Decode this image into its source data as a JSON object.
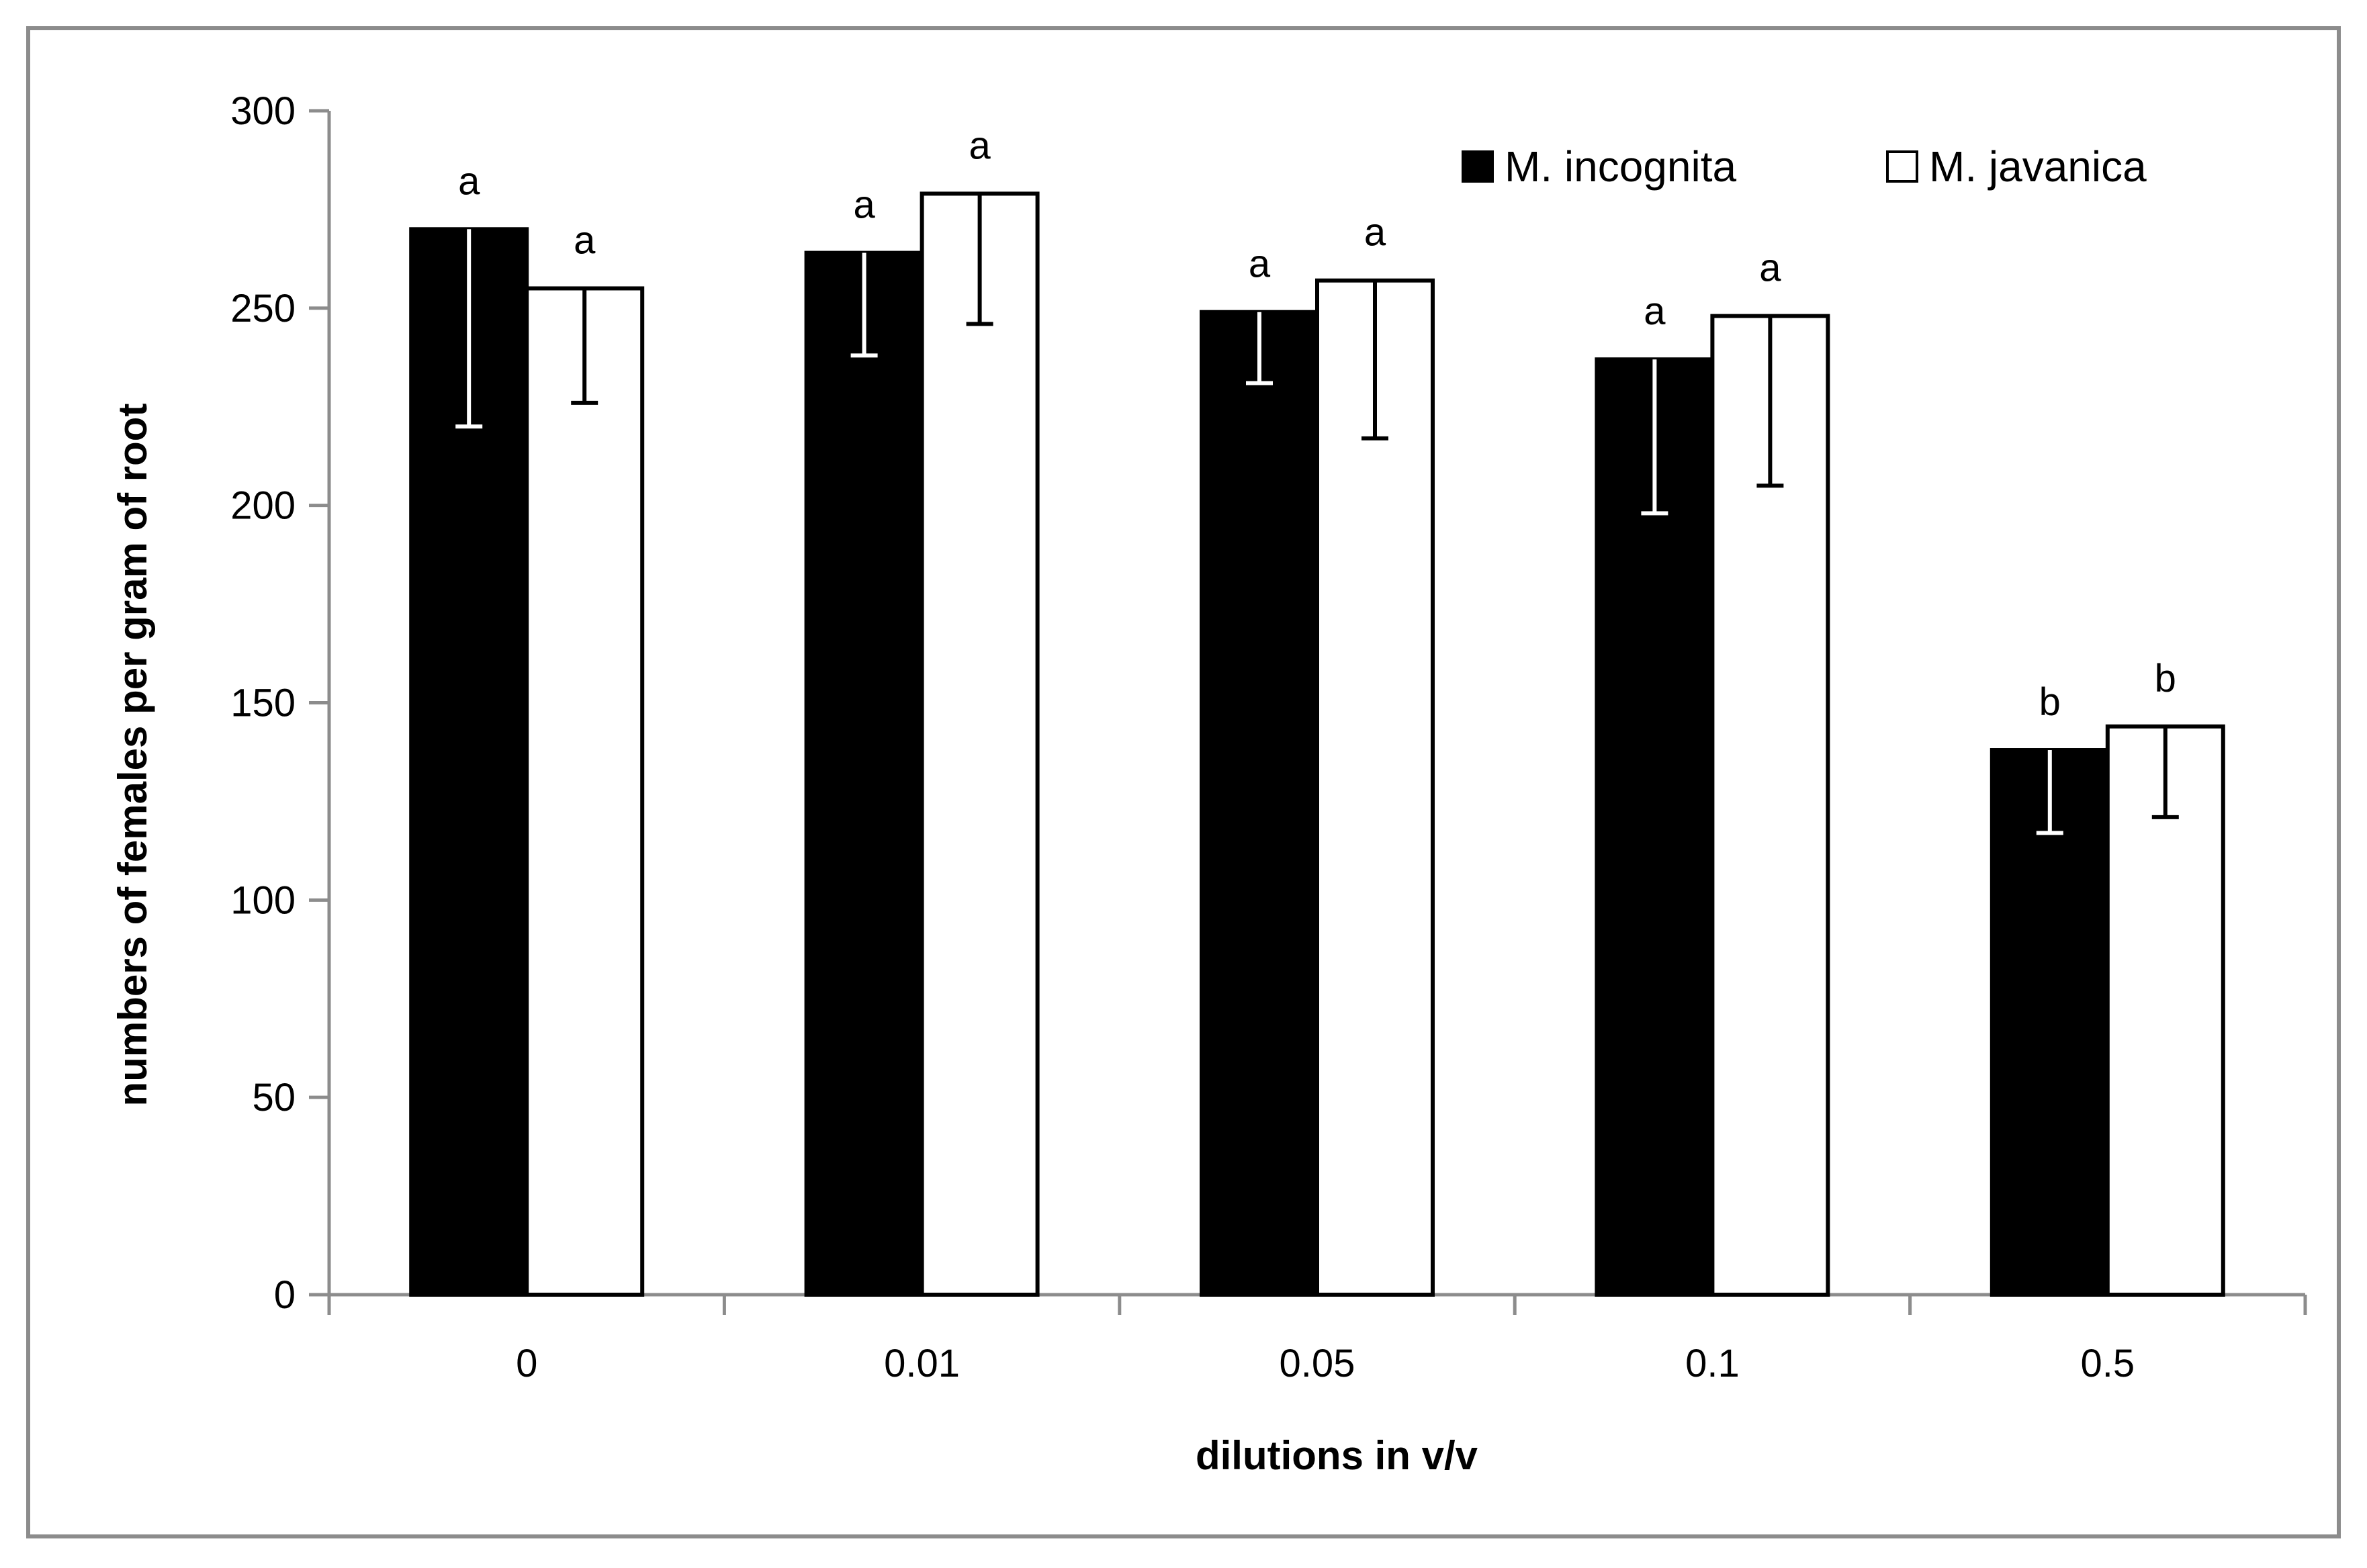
{
  "chart_data": {
    "type": "bar",
    "title": "",
    "xlabel": "dilutions in v/v",
    "ylabel": "numbers of females per gram of root",
    "categories": [
      "0",
      "0.01",
      "0.05",
      "0.1",
      "0.5"
    ],
    "ylim": [
      0,
      300
    ],
    "yticks": [
      0,
      50,
      100,
      150,
      200,
      250,
      300
    ],
    "grid": false,
    "legend_position": "top-right",
    "series": [
      {
        "name": "M. incognita",
        "fill": "#000000",
        "values": [
          270,
          264,
          249,
          237,
          138
        ],
        "err_low": [
          50,
          26,
          18,
          39,
          21
        ],
        "err_high": [
          0,
          0,
          0,
          0,
          0
        ],
        "letters": [
          "a",
          "a",
          "a",
          "a",
          "b"
        ]
      },
      {
        "name": "M. javanica",
        "fill": "#ffffff",
        "values": [
          255,
          279,
          257,
          248,
          144
        ],
        "err_low": [
          29,
          33,
          40,
          43,
          23
        ],
        "err_high": [
          0,
          0,
          0,
          0,
          0
        ],
        "letters": [
          "a",
          "a",
          "a",
          "a",
          "b"
        ]
      }
    ]
  }
}
